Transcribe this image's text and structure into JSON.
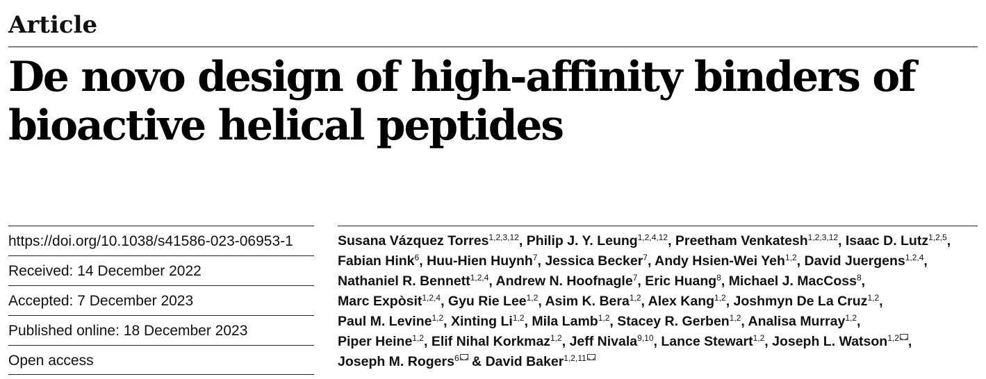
{
  "header": {
    "kicker": "Article",
    "title_line1": "De novo design of high-affinity binders of",
    "title_line2": "bioactive helical peptides"
  },
  "meta": {
    "doi": "https://doi.org/10.1038/s41586-023-06953-1",
    "received": "Received: 14 December 2022",
    "accepted": "Accepted: 7 December 2023",
    "published": "Published online: 18 December 2023",
    "access": "Open access"
  },
  "authors": [
    [
      {
        "name": "Susana Vázquez Torres",
        "sup": "1,2,3,12",
        "sep": ", "
      },
      {
        "name": "Philip J. Y. Leung",
        "sup": "1,2,4,12",
        "sep": ", "
      },
      {
        "name": "Preetham Venkatesh",
        "sup": "1,2,3,12",
        "sep": ", "
      },
      {
        "name": "Isaac D. Lutz",
        "sup": "1,2,5",
        "sep": ","
      }
    ],
    [
      {
        "name": "Fabian Hink",
        "sup": "6",
        "sep": ", "
      },
      {
        "name": "Huu-Hien Huynh",
        "sup": "7",
        "sep": ", "
      },
      {
        "name": "Jessica Becker",
        "sup": "7",
        "sep": ", "
      },
      {
        "name": "Andy Hsien-Wei Yeh",
        "sup": "1,2",
        "sep": ", "
      },
      {
        "name": "David Juergens",
        "sup": "1,2,4",
        "sep": ","
      }
    ],
    [
      {
        "name": "Nathaniel R. Bennett",
        "sup": "1,2,4",
        "sep": ", "
      },
      {
        "name": "Andrew N. Hoofnagle",
        "sup": "7",
        "sep": ", "
      },
      {
        "name": "Eric Huang",
        "sup": "8",
        "sep": ", "
      },
      {
        "name": "Michael J. MacCoss",
        "sup": "8",
        "sep": ","
      }
    ],
    [
      {
        "name": "Marc Expòsit",
        "sup": "1,2,4",
        "sep": ", "
      },
      {
        "name": "Gyu Rie Lee",
        "sup": "1,2",
        "sep": ", "
      },
      {
        "name": "Asim K. Bera",
        "sup": "1,2",
        "sep": ", "
      },
      {
        "name": "Alex Kang",
        "sup": "1,2",
        "sep": ", "
      },
      {
        "name": "Joshmyn De La Cruz",
        "sup": "1,2",
        "sep": ","
      }
    ],
    [
      {
        "name": "Paul M. Levine",
        "sup": "1,2",
        "sep": ", "
      },
      {
        "name": "Xinting Li",
        "sup": "1,2",
        "sep": ", "
      },
      {
        "name": "Mila Lamb",
        "sup": "1,2",
        "sep": ", "
      },
      {
        "name": "Stacey R. Gerben",
        "sup": "1,2",
        "sep": ", "
      },
      {
        "name": "Analisa Murray",
        "sup": "1,2",
        "sep": ","
      }
    ],
    [
      {
        "name": "Piper Heine",
        "sup": "1,2",
        "sep": ", "
      },
      {
        "name": "Elif Nihal Korkmaz",
        "sup": "1,2",
        "sep": ", "
      },
      {
        "name": "Jeff Nivala",
        "sup": "9,10",
        "sep": ", "
      },
      {
        "name": "Lance Stewart",
        "sup": "1,2",
        "sep": ", "
      },
      {
        "name": "Joseph L. Watson",
        "sup": "1,2",
        "mail": true,
        "sep": ","
      }
    ],
    [
      {
        "name": "Joseph M. Rogers",
        "sup": "6",
        "mail": true,
        "sep": " & "
      },
      {
        "name": "David Baker",
        "sup": "1,2,11",
        "mail": true,
        "sep": ""
      }
    ]
  ]
}
